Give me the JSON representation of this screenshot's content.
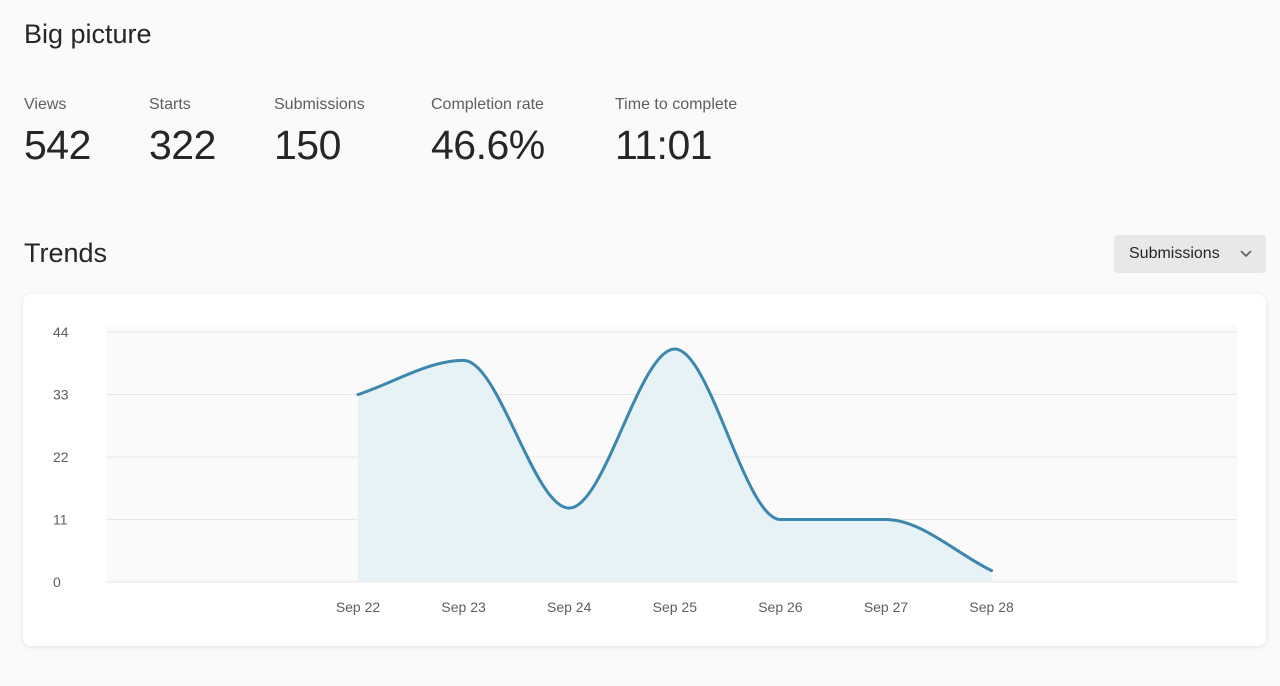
{
  "big_picture": {
    "title": "Big picture",
    "metrics": [
      {
        "label": "Views",
        "value": "542"
      },
      {
        "label": "Starts",
        "value": "322"
      },
      {
        "label": "Submissions",
        "value": "150"
      },
      {
        "label": "Completion rate",
        "value": "46.6%"
      },
      {
        "label": "Time to complete",
        "value": "11:01"
      }
    ]
  },
  "trends": {
    "title": "Trends",
    "dropdown": {
      "selected": "Submissions",
      "icon": "chevron-down-icon"
    }
  },
  "colors": {
    "line": "#3c87ae",
    "area": "#e7f2f6",
    "grid": "#e6e6e6"
  },
  "chart_data": {
    "type": "area",
    "x": [
      "Sep 22",
      "Sep 23",
      "Sep 24",
      "Sep 25",
      "Sep 26",
      "Sep 27",
      "Sep 28"
    ],
    "series": [
      {
        "values": [
          33,
          39,
          13,
          41,
          11,
          11,
          2
        ]
      }
    ],
    "y_ticks": [
      0,
      11,
      22,
      33,
      44
    ],
    "ylim": [
      0,
      44
    ],
    "grid": true,
    "legend": "none",
    "title": "",
    "xlabel": "",
    "ylabel": ""
  }
}
